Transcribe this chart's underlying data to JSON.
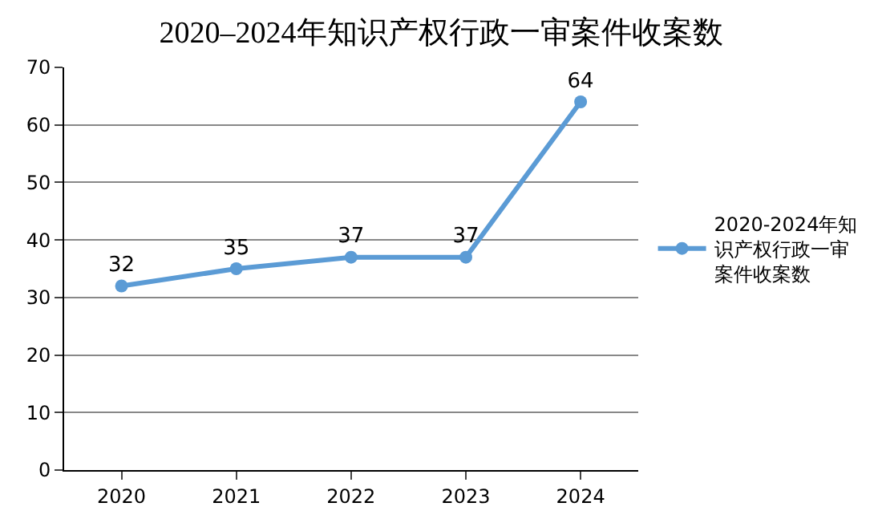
{
  "chart_data": {
    "type": "line",
    "title": "2020–2024年知识产权行政一审案件收案数",
    "categories": [
      "2020",
      "2021",
      "2022",
      "2023",
      "2024"
    ],
    "series": [
      {
        "name": "2020-2024年知识产权行政一审案件收案数",
        "color": "#5b9bd5",
        "values": [
          32,
          35,
          37,
          37,
          64
        ]
      }
    ],
    "ylim": [
      0,
      70
    ],
    "yticks": [
      0,
      10,
      20,
      30,
      40,
      50,
      60,
      70
    ],
    "grid": "y",
    "legend": "right",
    "marker": "circle",
    "line_style": "solid",
    "data_labels": true
  }
}
